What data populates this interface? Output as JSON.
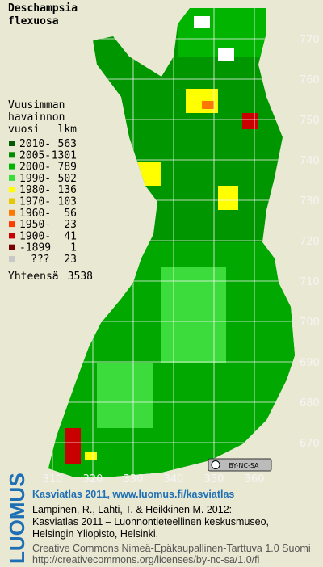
{
  "title": [
    "Deschampsia",
    "flexuosa"
  ],
  "legend": {
    "heading": [
      "Vuusimman",
      "havainnon"
    ],
    "year_header": "vuosi",
    "count_header": "lkm",
    "items": [
      {
        "label": "2010-",
        "count": 563,
        "color": "#005a00"
      },
      {
        "label": "2005-",
        "count": 1301,
        "color": "#008c00"
      },
      {
        "label": "2000-",
        "count": 789,
        "color": "#00b400"
      },
      {
        "label": "1990-",
        "count": 502,
        "color": "#3cdc3c"
      },
      {
        "label": "1980-",
        "count": 136,
        "color": "#ffff00"
      },
      {
        "label": "1970-",
        "count": 103,
        "color": "#e6c800"
      },
      {
        "label": "1960-",
        "count": 56,
        "color": "#ff7800"
      },
      {
        "label": "1950-",
        "count": 23,
        "color": "#ff3c00"
      },
      {
        "label": "1900-",
        "count": 41,
        "color": "#c80000"
      },
      {
        "label": "-1899",
        "count": 1,
        "color": "#780000"
      },
      {
        "label": "???",
        "count": 23,
        "color": "#c8c8c8"
      }
    ],
    "total_label": "Yhteensä",
    "total": 3538
  },
  "map": {
    "y_labels": [
      770,
      760,
      750,
      740,
      730,
      720,
      710,
      700,
      690,
      680,
      670
    ],
    "x_labels": [
      310,
      320,
      330,
      340,
      350,
      360
    ]
  },
  "license_badge": "BY-NC-SA",
  "footer": {
    "logo": "LUOMUS",
    "headline": "Kasviatlas 2011, www.luomus.fi/kasviatlas",
    "citation": [
      "Lampinen, R., Lahti, T. & Heikkinen M. 2012:",
      "Kasviatlas 2011 – Luonnontieteellinen keskusmuseo,",
      "Helsingin Yliopisto, Helsinki."
    ],
    "license": [
      "Creative Commons Nimeä-Epäkaupallinen-Tarttuva 1.0 Suomi",
      "http://creativecommons.org/licenses/by-nc-sa/1.0/fi"
    ]
  }
}
